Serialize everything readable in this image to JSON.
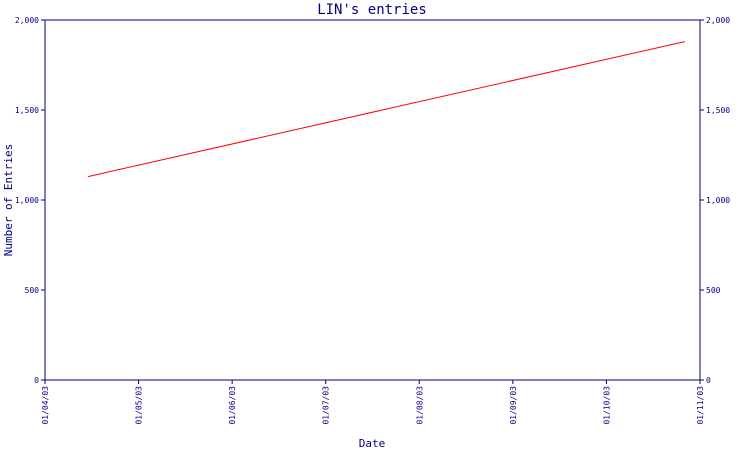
{
  "chart_data": {
    "type": "line",
    "title": "LIN's entries",
    "xlabel": "Date",
    "ylabel": "Number of Entries",
    "x_ticks": [
      "01/04/03",
      "01/05/03",
      "01/06/03",
      "01/07/03",
      "01/08/03",
      "01/09/03",
      "01/10/03",
      "01/11/03"
    ],
    "y_ticks": [
      "0",
      "500",
      "1,000",
      "1,500",
      "2,000"
    ],
    "y_ticks_right": [
      "0",
      "500",
      "1,000",
      "1,500",
      "2,000"
    ],
    "ylim": [
      0,
      2000
    ],
    "xlim": [
      "2003-04-01",
      "2003-11-01"
    ],
    "grid": false,
    "series": [
      {
        "color": "#ff0000",
        "points": [
          {
            "x": "2003-04-15",
            "y": 1130
          },
          {
            "x": "2003-10-27",
            "y": 1880
          }
        ]
      }
    ]
  },
  "colors": {
    "axis": "#000080",
    "line": "#ff0000"
  }
}
